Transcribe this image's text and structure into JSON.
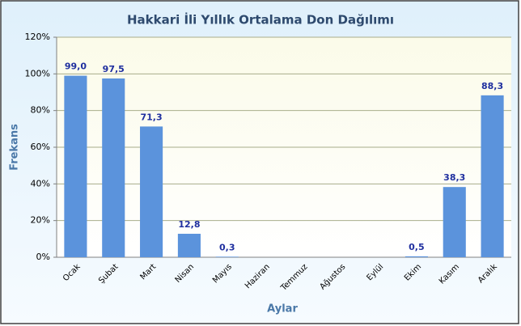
{
  "chart_data": {
    "type": "bar",
    "title": "Hakkari İli Yıllık Ortalama Don Dağılımı",
    "xlabel": "Aylar",
    "ylabel": "Frekans",
    "categories": [
      "Ocak",
      "Şubat",
      "Mart",
      "Nisan",
      "Mayıs",
      "Haziran",
      "Temmuz",
      "Ağustos",
      "Eylül",
      "Ekim",
      "Kasım",
      "Aralık"
    ],
    "values": [
      99.0,
      97.5,
      71.3,
      12.8,
      0.3,
      0,
      0,
      0,
      0,
      0.5,
      38.3,
      88.3
    ],
    "value_labels": [
      "99,0",
      "97,5",
      "71,3",
      "12,8",
      "0,3",
      null,
      null,
      null,
      null,
      "0,5",
      "38,3",
      "88,3"
    ],
    "color": "#5b93dc",
    "ylim": [
      0,
      120
    ],
    "yticks": [
      {
        "value": 0,
        "label": "0%"
      },
      {
        "value": 20,
        "label": "20%"
      },
      {
        "value": 40,
        "label": "40%"
      },
      {
        "value": 60,
        "label": "60%"
      },
      {
        "value": 80,
        "label": "80%"
      },
      {
        "value": 100,
        "label": "100%"
      },
      {
        "value": 120,
        "label": "120%"
      }
    ],
    "grid": true
  }
}
